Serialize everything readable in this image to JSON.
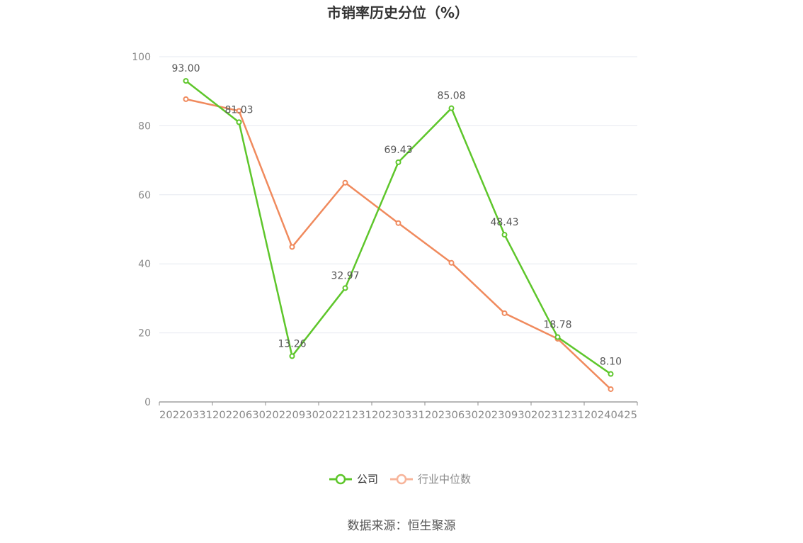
{
  "chart_data": {
    "type": "line",
    "title": "市销率历史分位（%）",
    "categories": [
      "20220331",
      "20220630",
      "20220930",
      "20221231",
      "20230331",
      "20230630",
      "20230930",
      "20231231",
      "20240425"
    ],
    "ylim": [
      0,
      100
    ],
    "yticks": [
      0,
      20,
      40,
      60,
      80,
      100
    ],
    "grid": true,
    "legend_position": "bottom-center",
    "series": [
      {
        "name": "公司",
        "color": "#5ec62b",
        "values": [
          93.0,
          81.03,
          13.26,
          32.97,
          69.43,
          85.08,
          48.43,
          18.78,
          8.1
        ],
        "labels": [
          "93.00",
          "81.03",
          "13.26",
          "32.97",
          "69.43",
          "85.08",
          "48.43",
          "18.78",
          "8.10"
        ]
      },
      {
        "name": "行业中位数",
        "color": "#f08a5d",
        "legend_color": "#f7b49a",
        "values": [
          87.7,
          84.3,
          44.9,
          63.5,
          51.8,
          40.3,
          25.7,
          18.3,
          3.7
        ]
      }
    ]
  },
  "source_text": "数据来源：恒生聚源"
}
